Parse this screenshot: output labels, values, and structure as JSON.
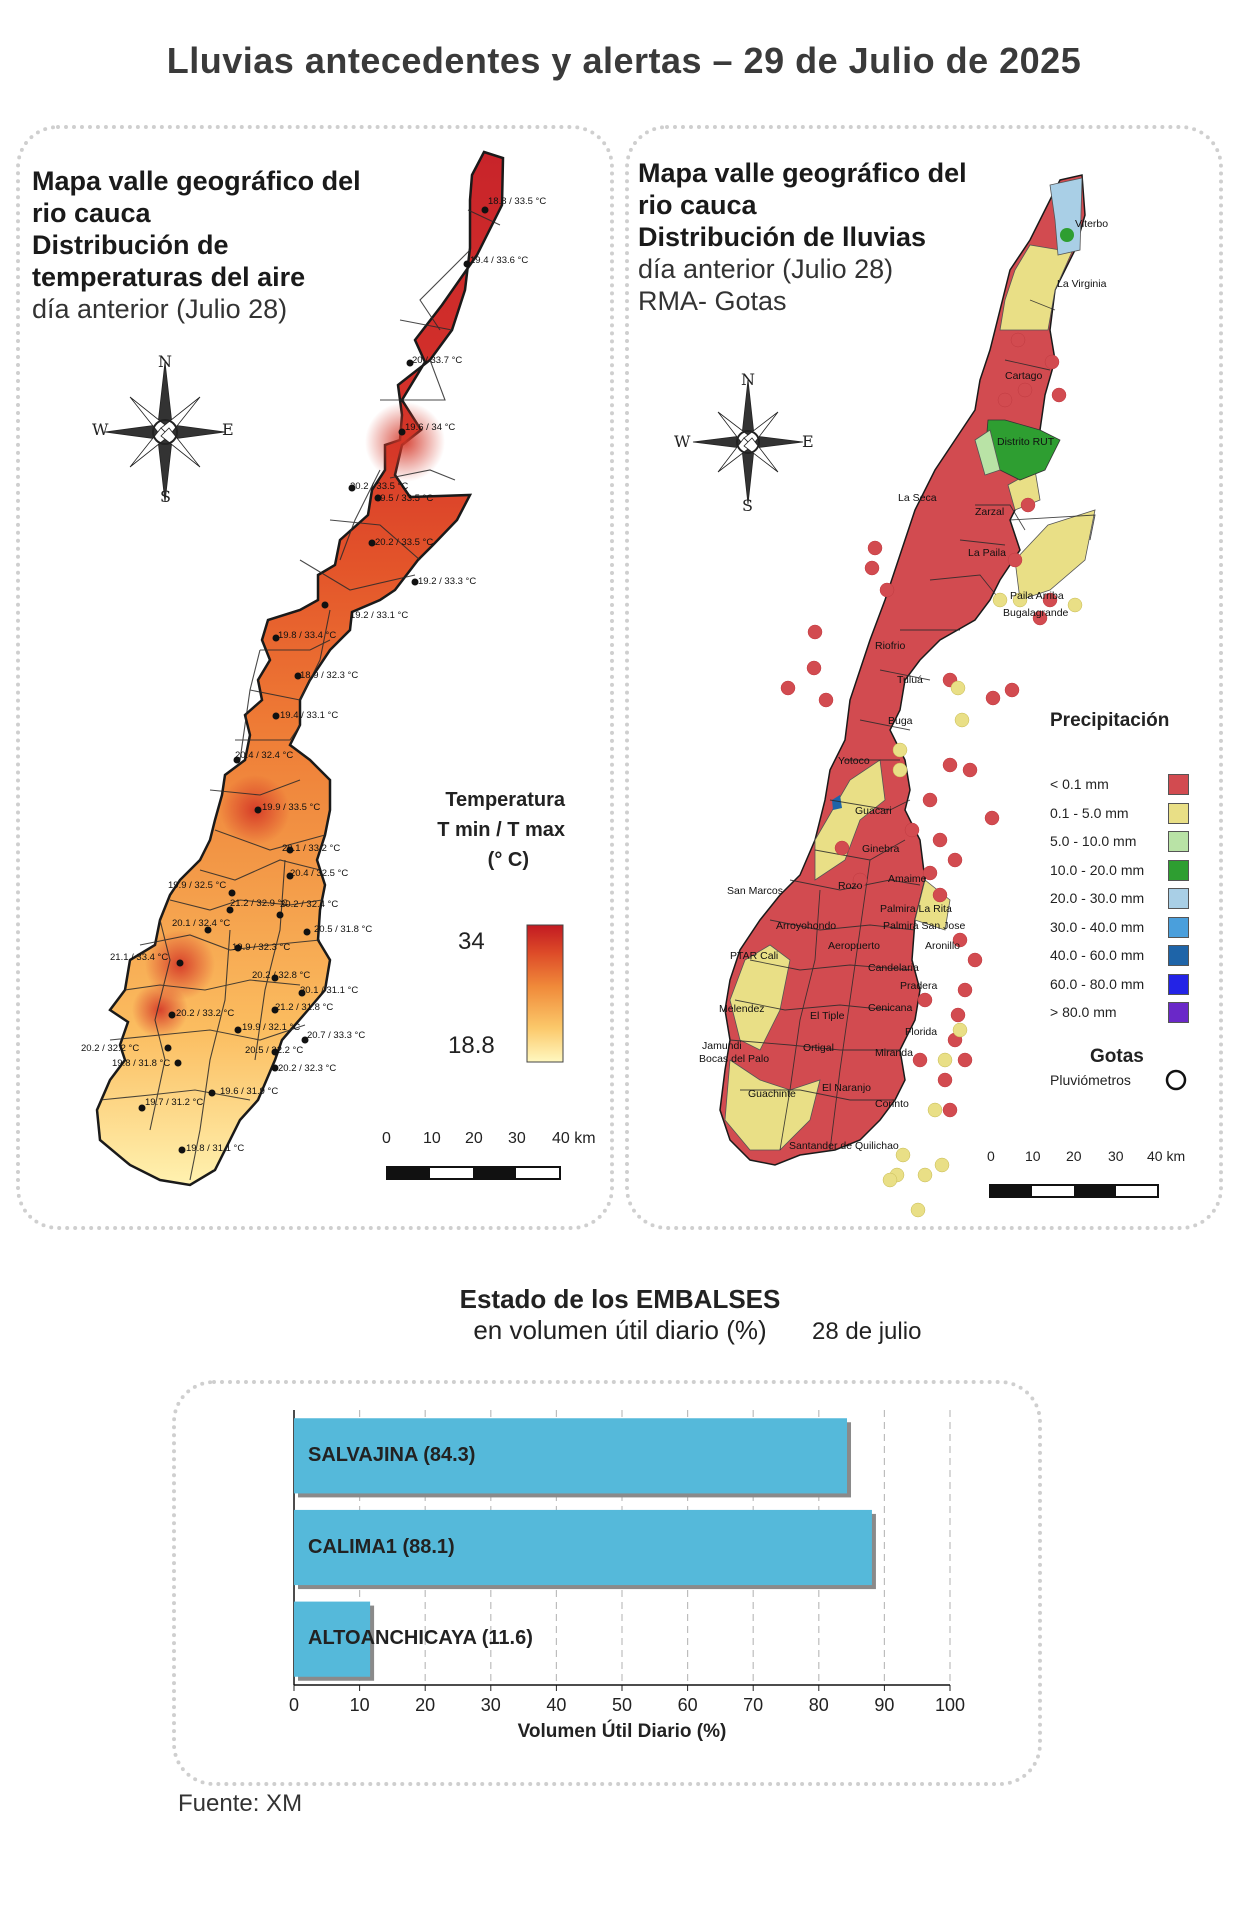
{
  "page": {
    "title": "Lluvias antecedentes y alertas – 29 de Julio de 2025",
    "source": "Fuente: XM"
  },
  "temp_map": {
    "title_lines": [
      "Mapa valle geográfico del",
      "rio cauca",
      "Distribución de",
      "temperaturas del aire",
      "día anterior (Julio 28)"
    ],
    "compass": {
      "n": "N",
      "s": "S",
      "e": "E",
      "w": "W"
    },
    "legend_title_lines": [
      "Temperatura",
      "T min / T max",
      "(° C)"
    ],
    "legend_max": "34",
    "legend_min": "18.8",
    "scale_labels": [
      "0",
      "10",
      "20",
      "30",
      "40 km"
    ],
    "stations": [
      "18.8 / 33.5 °C",
      "19.4 / 33.6 °C",
      "20 / 33.7 °C",
      "19.6 / 34 °C",
      "20.2 / 33.5 °C",
      "19.5 / 33.5 °C",
      "20.2 / 33.5 °C",
      "19.2 / 33.3 °C",
      "19.2 / 33.1 °C",
      "19.8 / 33.4 °C",
      "18.9 / 32.3 °C",
      "19.4 / 33.1 °C",
      "20.4 / 32.4 °C",
      "19.9 / 33.5 °C",
      "20.1 / 33.2 °C",
      "20.4 / 32.5 °C",
      "19.9 / 32.5 °C",
      "21.2 / 32.9 °C",
      "20.2 / 32.4 °C",
      "20.1 / 32.4 °C",
      "20.5 / 31.8 °C",
      "19.9 / 32.3 °C",
      "21.1 / 33.4 °C",
      "20.2 / 32.8 °C",
      "20.1 / 31.1 °C",
      "21.2 / 31.8 °C",
      "20.2 / 33.2 °C",
      "19.9 / 32.1 °C",
      "20.7 / 33.3 °C",
      "20.2 / 32.2 °C",
      "20.5 / 32.2 °C",
      "19.8 / 31.8 °C",
      "20.2 / 32.3 °C",
      "19.7 / 31.2 °C",
      "19.6 / 31.9 °C",
      "19.8 / 31.1 °C"
    ]
  },
  "rain_map": {
    "title_lines": [
      "Mapa valle geográfico del",
      "rio cauca",
      "Distribución de lluvias",
      "día anterior (Julio 28)",
      "RMA- Gotas"
    ],
    "compass": {
      "n": "N",
      "s": "S",
      "e": "E",
      "w": "W"
    },
    "legend_title": "Precipitación",
    "legend": [
      {
        "label": "< 0.1 mm",
        "color": "#d24b50"
      },
      {
        "label": "0.1 - 5.0 mm",
        "color": "#e9df86"
      },
      {
        "label": "5.0 - 10.0 mm",
        "color": "#b9e3a6"
      },
      {
        "label": "10.0 - 20.0 mm",
        "color": "#2e9e31"
      },
      {
        "label": "20.0 - 30.0 mm",
        "color": "#a9cfe6"
      },
      {
        "label": "30.0 - 40.0 mm",
        "color": "#4a9fdc"
      },
      {
        "label": "40.0 - 60.0 mm",
        "color": "#1e64a8"
      },
      {
        "label": "60.0 - 80.0 mm",
        "color": "#2323e6"
      },
      {
        "label": "> 80.0 mm",
        "color": "#6a28c8"
      }
    ],
    "gotas_title": "Gotas",
    "gotas_item": "Pluviómetros",
    "scale_labels": [
      "0",
      "10",
      "20",
      "30",
      "40 km"
    ],
    "towns": [
      "Viterbo",
      "La Virginia",
      "Cartago",
      "Distrito RUT",
      "La Seca",
      "Zarzal",
      "La Paila",
      "Paila Arriba",
      "Bugalagrande",
      "Riofrio",
      "Tuluá",
      "Buga",
      "Yotoco",
      "Guacari",
      "Ginebra",
      "Amaime",
      "San Marcos",
      "Rozo",
      "Palmira La Rita",
      "Arroyohondo",
      "Palmira San Jose",
      "Aeropuerto",
      "Aronillo",
      "PTAR Cali",
      "Candelaria",
      "Pradera",
      "Melendez",
      "El Tiple",
      "Cenicana",
      "Florida",
      "Jamundi",
      "Bocas del Palo",
      "Ortigal",
      "Miranda",
      "Guachinte",
      "El Naranjo",
      "Corinto",
      "Santander de Quilichao"
    ]
  },
  "embalses": {
    "title": "Estado de los EMBALSES",
    "subtitle": "en volumen útil diario (%)",
    "date": "28 de julio",
    "chart_data": {
      "type": "bar",
      "orientation": "horizontal",
      "categories": [
        "SALVAJINA (84.3)",
        "CALIMA1 (88.1)",
        "ALTOANCHICAYA (11.6)"
      ],
      "values": [
        84.3,
        88.1,
        11.6
      ],
      "xlabel": "Volumen Útil Diario (%)",
      "xlim": [
        0,
        100
      ],
      "xticks": [
        "0",
        "10",
        "20",
        "30",
        "40",
        "50",
        "60",
        "70",
        "80",
        "90",
        "100"
      ],
      "grid": "vertical dashed",
      "bar_color": "#55b9da"
    }
  }
}
